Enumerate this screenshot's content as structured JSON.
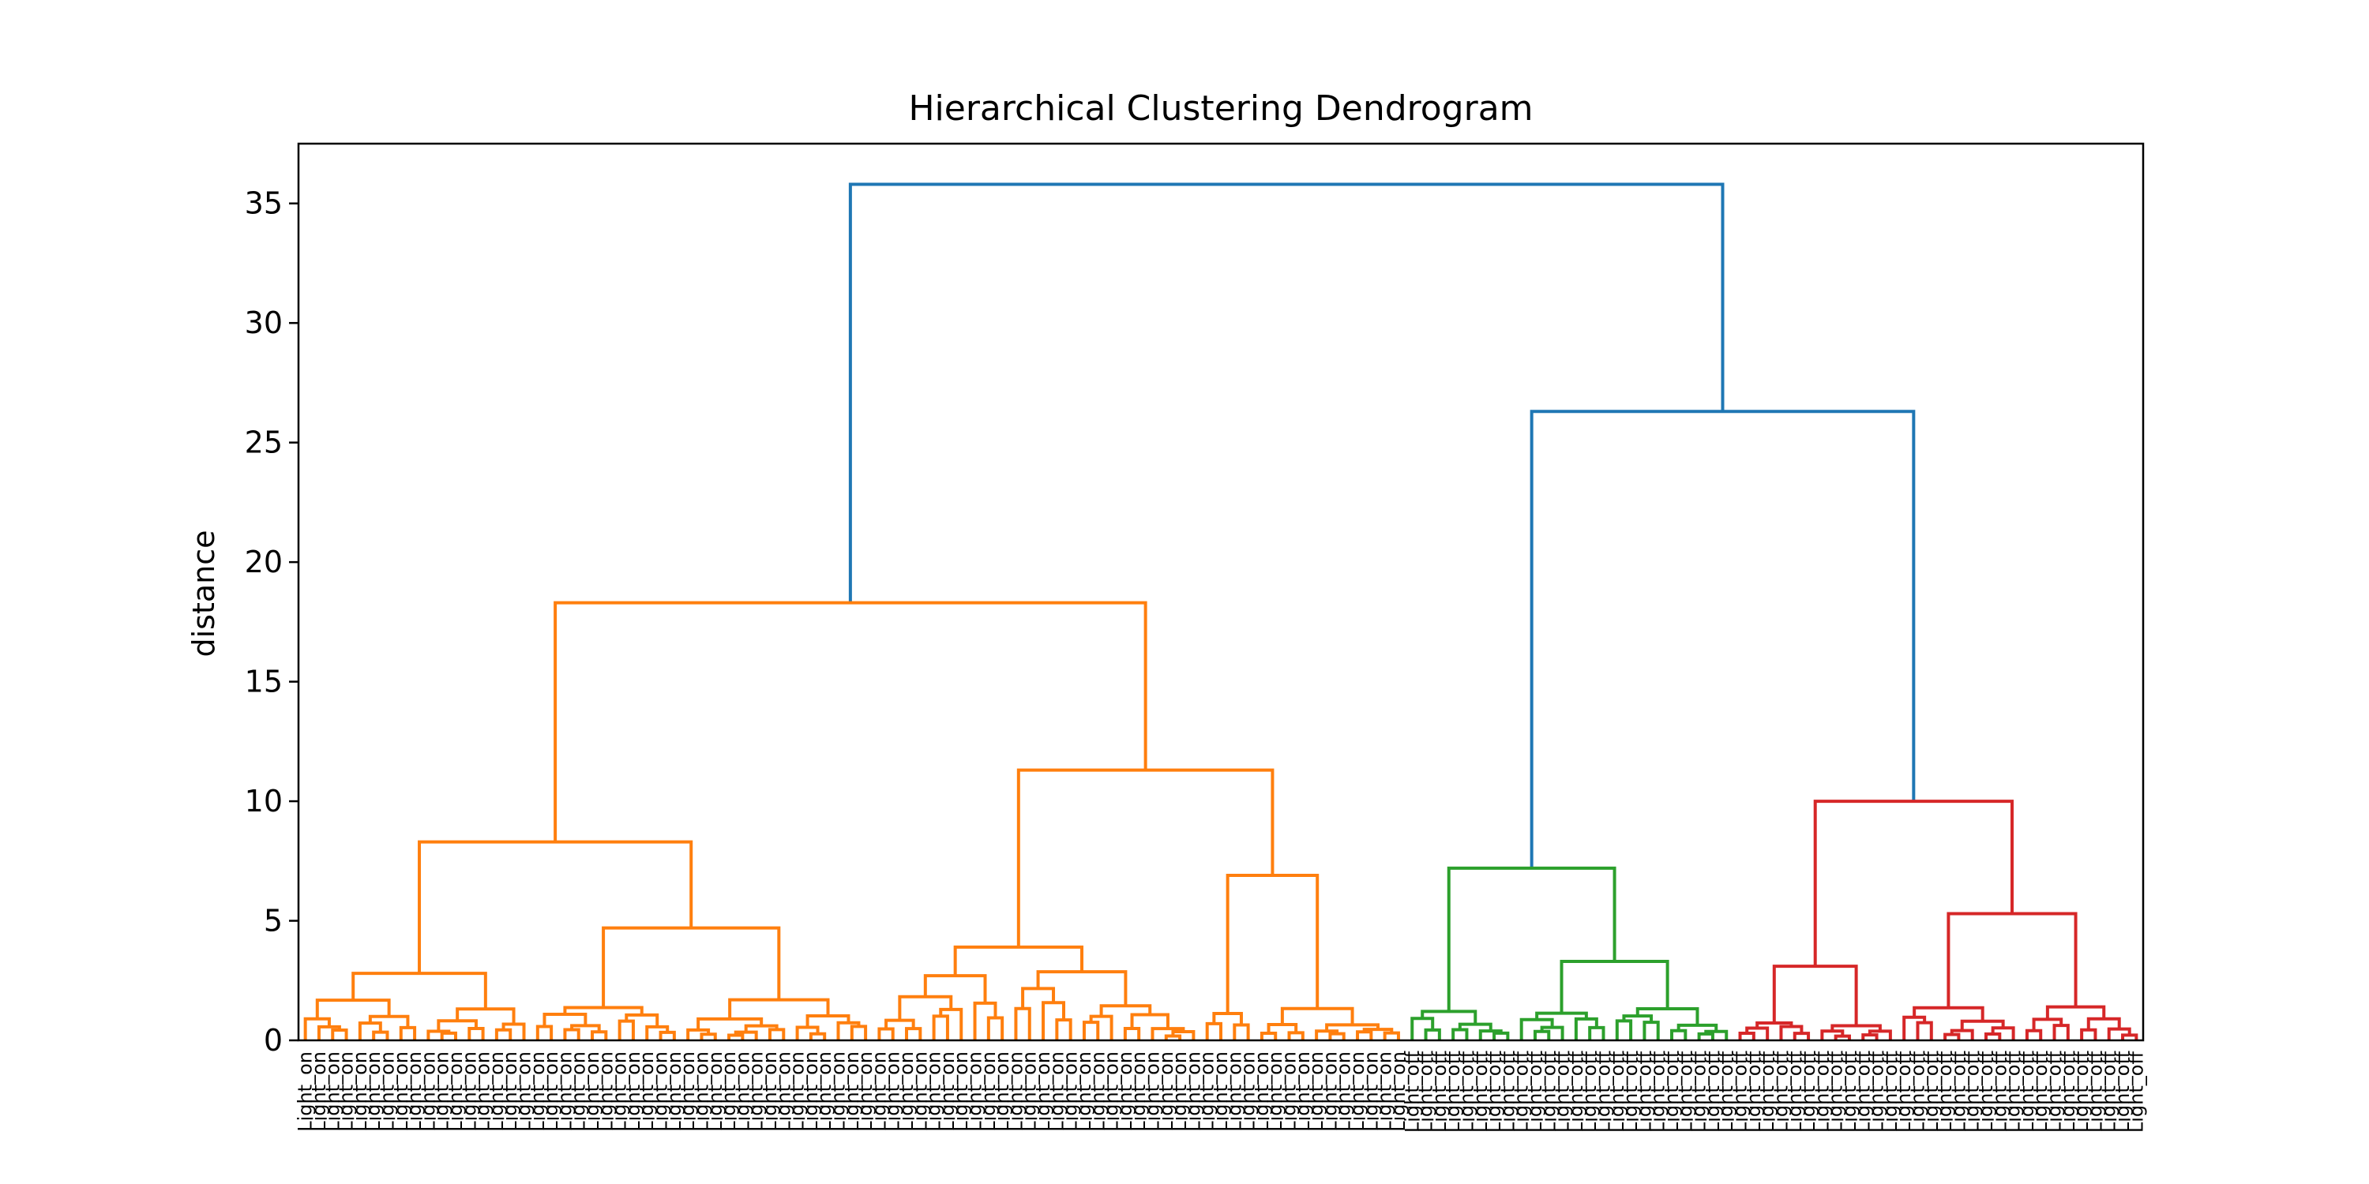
{
  "chart_data": {
    "type": "dendrogram",
    "title": "Hierarchical Clustering Dendrogram",
    "xlabel": "",
    "ylabel": "distance",
    "ylim": [
      0,
      37.5
    ],
    "yticks": [
      0,
      5,
      10,
      15,
      20,
      25,
      30,
      35
    ],
    "grid": false,
    "colors": {
      "C1": "#ff7f0e",
      "C2": "#2ca02c",
      "C3": "#d62728",
      "above": "#1f77b4"
    },
    "leaf_label_on": "Light_on",
    "leaf_label_off": "Light_off",
    "leaf_counts": {
      "orange": 81,
      "green": 24,
      "red": 30
    },
    "merges": [
      {
        "name": "root",
        "height": 35.8,
        "color": "above"
      },
      {
        "name": "green-red",
        "height": 26.3,
        "color": "above"
      },
      {
        "name": "orange-top",
        "height": 18.3,
        "color": "C1"
      },
      {
        "name": "orange-right",
        "height": 11.3,
        "color": "C1"
      },
      {
        "name": "red-top",
        "height": 10.0,
        "color": "C3"
      },
      {
        "name": "orange-left",
        "height": 8.3,
        "color": "C1"
      },
      {
        "name": "green-top",
        "height": 7.2,
        "color": "C2"
      },
      {
        "name": "orange-right-b",
        "height": 6.9,
        "color": "C1"
      },
      {
        "name": "red-right",
        "height": 5.3,
        "color": "C3"
      },
      {
        "name": "orange-left-b",
        "height": 4.7,
        "color": "C1"
      },
      {
        "name": "orange-right-a",
        "height": 3.9,
        "color": "C1"
      },
      {
        "name": "green-right",
        "height": 3.3,
        "color": "C2"
      },
      {
        "name": "red-left",
        "height": 3.1,
        "color": "C3"
      },
      {
        "name": "orange-left-a",
        "height": 2.8,
        "color": "C1"
      }
    ]
  }
}
